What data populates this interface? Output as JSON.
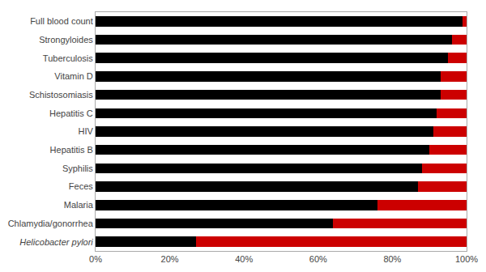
{
  "chart_data": {
    "type": "bar",
    "orientation": "horizontal",
    "stacked": true,
    "grid": false,
    "categories": [
      "Full blood count",
      "Strongyloides",
      "Tuberculosis",
      "Vitamin D",
      "Schistosomiasis",
      "Hepatitis C",
      "HIV",
      "Hepatitis B",
      "Syphilis",
      "Feces",
      "Malaria",
      "Chlamydia/gonorrhea",
      "Helicobacter pylori"
    ],
    "series": [
      {
        "color": "#000000",
        "values": [
          99,
          96,
          95,
          93,
          93,
          92,
          91,
          90,
          88,
          87,
          76,
          64,
          27
        ]
      },
      {
        "color": "#cc0000",
        "values": [
          1,
          4,
          5,
          7,
          7,
          8,
          9,
          10,
          12,
          13,
          24,
          36,
          73
        ]
      }
    ],
    "xlim": [
      0,
      100
    ],
    "xticks": [
      {
        "value": 0,
        "label": "0%"
      },
      {
        "value": 20,
        "label": "20%"
      },
      {
        "value": 40,
        "label": "40%"
      },
      {
        "value": 60,
        "label": "60%"
      },
      {
        "value": 80,
        "label": "80%"
      },
      {
        "value": 100,
        "label": "100%"
      }
    ]
  }
}
